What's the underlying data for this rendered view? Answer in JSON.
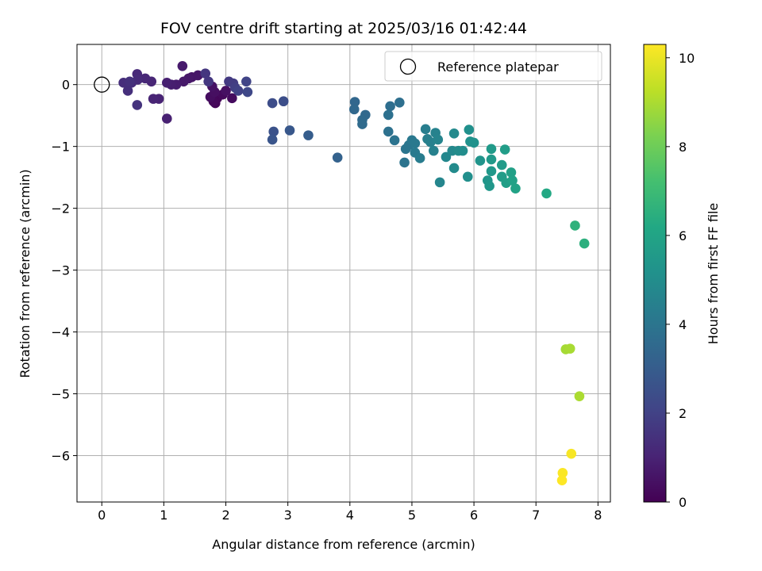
{
  "chart_data": {
    "type": "scatter",
    "title": "FOV centre drift starting at 2025/03/16 01:42:44",
    "xlabel": "Angular distance from reference (arcmin)",
    "ylabel": "Rotation from reference (arcmin)",
    "xlim": [
      -0.4,
      8.2
    ],
    "ylim": [
      -6.75,
      0.65
    ],
    "xticks": [
      0,
      1,
      2,
      3,
      4,
      5,
      6,
      7,
      8
    ],
    "yticks": [
      0,
      -1,
      -2,
      -3,
      -4,
      -5,
      -6
    ],
    "xtick_labels": [
      "0",
      "1",
      "2",
      "3",
      "4",
      "5",
      "6",
      "7",
      "8"
    ],
    "ytick_labels": [
      "0",
      "−1",
      "−2",
      "−3",
      "−4",
      "−5",
      "−6"
    ],
    "grid": true,
    "legend": {
      "position": "top-right",
      "entries": [
        "Reference platepar"
      ]
    },
    "reference_point": {
      "x": 0,
      "y": 0,
      "label": "Reference platepar"
    },
    "colorbar": {
      "label": "Hours from first FF file",
      "colormap": "viridis",
      "range": [
        0,
        10.3
      ],
      "ticks": [
        0,
        2,
        4,
        6,
        8,
        10
      ],
      "tick_labels": [
        "0",
        "2",
        "4",
        "6",
        "8",
        "10"
      ]
    },
    "points": [
      {
        "x": 1.83,
        "y": -0.3,
        "h": 0.1
      },
      {
        "x": 1.86,
        "y": -0.22,
        "h": 0.15
      },
      {
        "x": 1.8,
        "y": -0.27,
        "h": 0.2
      },
      {
        "x": 1.95,
        "y": -0.16,
        "h": 0.25
      },
      {
        "x": 2.1,
        "y": -0.22,
        "h": 0.3
      },
      {
        "x": 1.75,
        "y": -0.2,
        "h": 0.35
      },
      {
        "x": 1.82,
        "y": -0.12,
        "h": 0.4
      },
      {
        "x": 2.0,
        "y": -0.1,
        "h": 0.45
      },
      {
        "x": 1.78,
        "y": -0.03,
        "h": 0.5
      },
      {
        "x": 1.45,
        "y": 0.12,
        "h": 0.55
      },
      {
        "x": 1.55,
        "y": 0.15,
        "h": 0.6
      },
      {
        "x": 1.4,
        "y": 0.1,
        "h": 0.65
      },
      {
        "x": 1.32,
        "y": 0.05,
        "h": 0.7
      },
      {
        "x": 1.3,
        "y": 0.3,
        "h": 0.75
      },
      {
        "x": 1.2,
        "y": 0.0,
        "h": 0.8
      },
      {
        "x": 1.12,
        "y": 0.0,
        "h": 0.85
      },
      {
        "x": 1.05,
        "y": 0.03,
        "h": 0.9
      },
      {
        "x": 1.05,
        "y": -0.55,
        "h": 0.95
      },
      {
        "x": 0.92,
        "y": -0.23,
        "h": 1.0
      },
      {
        "x": 0.83,
        "y": -0.23,
        "h": 1.05
      },
      {
        "x": 0.8,
        "y": 0.05,
        "h": 1.1
      },
      {
        "x": 0.7,
        "y": 0.1,
        "h": 1.15
      },
      {
        "x": 0.57,
        "y": 0.17,
        "h": 1.2
      },
      {
        "x": 0.58,
        "y": 0.08,
        "h": 1.25
      },
      {
        "x": 0.48,
        "y": 0.03,
        "h": 1.3
      },
      {
        "x": 0.35,
        "y": 0.03,
        "h": 1.35
      },
      {
        "x": 0.42,
        "y": -0.1,
        "h": 1.4
      },
      {
        "x": 0.45,
        "y": 0.05,
        "h": 1.45
      },
      {
        "x": 0.57,
        "y": -0.33,
        "h": 1.5
      },
      {
        "x": 1.67,
        "y": 0.18,
        "h": 1.6
      },
      {
        "x": 1.72,
        "y": 0.05,
        "h": 1.65
      },
      {
        "x": 2.05,
        "y": 0.05,
        "h": 1.7
      },
      {
        "x": 2.12,
        "y": 0.02,
        "h": 1.8
      },
      {
        "x": 2.15,
        "y": -0.05,
        "h": 1.9
      },
      {
        "x": 2.2,
        "y": -0.1,
        "h": 2.0
      },
      {
        "x": 2.33,
        "y": 0.05,
        "h": 2.1
      },
      {
        "x": 2.35,
        "y": -0.12,
        "h": 2.2
      },
      {
        "x": 2.75,
        "y": -0.3,
        "h": 2.4
      },
      {
        "x": 2.93,
        "y": -0.27,
        "h": 2.45
      },
      {
        "x": 2.77,
        "y": -0.76,
        "h": 2.6
      },
      {
        "x": 2.75,
        "y": -0.89,
        "h": 2.7
      },
      {
        "x": 3.03,
        "y": -0.74,
        "h": 2.8
      },
      {
        "x": 3.33,
        "y": -0.82,
        "h": 3.0
      },
      {
        "x": 3.8,
        "y": -1.18,
        "h": 3.2
      },
      {
        "x": 4.08,
        "y": -0.28,
        "h": 3.4
      },
      {
        "x": 4.07,
        "y": -0.4,
        "h": 3.45
      },
      {
        "x": 4.25,
        "y": -0.49,
        "h": 3.5
      },
      {
        "x": 4.2,
        "y": -0.57,
        "h": 3.55
      },
      {
        "x": 4.2,
        "y": -0.64,
        "h": 3.6
      },
      {
        "x": 4.65,
        "y": -0.35,
        "h": 3.7
      },
      {
        "x": 4.8,
        "y": -0.29,
        "h": 3.75
      },
      {
        "x": 4.62,
        "y": -0.49,
        "h": 3.8
      },
      {
        "x": 4.62,
        "y": -0.76,
        "h": 3.85
      },
      {
        "x": 4.72,
        "y": -0.9,
        "h": 3.9
      },
      {
        "x": 4.88,
        "y": -1.26,
        "h": 3.95
      },
      {
        "x": 4.9,
        "y": -1.04,
        "h": 4.0
      },
      {
        "x": 4.95,
        "y": -0.98,
        "h": 4.05
      },
      {
        "x": 5.0,
        "y": -0.9,
        "h": 4.1
      },
      {
        "x": 5.05,
        "y": -0.95,
        "h": 4.15
      },
      {
        "x": 5.05,
        "y": -1.1,
        "h": 4.2
      },
      {
        "x": 5.13,
        "y": -1.19,
        "h": 4.3
      },
      {
        "x": 5.22,
        "y": -0.72,
        "h": 4.35
      },
      {
        "x": 5.25,
        "y": -0.88,
        "h": 4.4
      },
      {
        "x": 5.3,
        "y": -0.93,
        "h": 4.45
      },
      {
        "x": 5.35,
        "y": -1.07,
        "h": 4.5
      },
      {
        "x": 5.38,
        "y": -0.78,
        "h": 4.55
      },
      {
        "x": 5.42,
        "y": -0.89,
        "h": 4.6
      },
      {
        "x": 5.45,
        "y": -1.58,
        "h": 4.7
      },
      {
        "x": 5.55,
        "y": -1.17,
        "h": 4.75
      },
      {
        "x": 5.65,
        "y": -1.07,
        "h": 4.8
      },
      {
        "x": 5.68,
        "y": -0.79,
        "h": 4.85
      },
      {
        "x": 5.68,
        "y": -1.35,
        "h": 4.9
      },
      {
        "x": 5.75,
        "y": -1.07,
        "h": 4.95
      },
      {
        "x": 5.82,
        "y": -1.07,
        "h": 5.0
      },
      {
        "x": 5.9,
        "y": -1.49,
        "h": 5.05
      },
      {
        "x": 5.92,
        "y": -0.73,
        "h": 5.1
      },
      {
        "x": 5.94,
        "y": -0.92,
        "h": 5.15
      },
      {
        "x": 6.0,
        "y": -0.94,
        "h": 5.2
      },
      {
        "x": 6.1,
        "y": -1.23,
        "h": 5.3
      },
      {
        "x": 6.22,
        "y": -1.55,
        "h": 5.35
      },
      {
        "x": 6.25,
        "y": -1.64,
        "h": 5.4
      },
      {
        "x": 6.28,
        "y": -1.4,
        "h": 5.45
      },
      {
        "x": 6.28,
        "y": -1.21,
        "h": 5.5
      },
      {
        "x": 6.28,
        "y": -1.04,
        "h": 5.55
      },
      {
        "x": 6.45,
        "y": -1.3,
        "h": 5.6
      },
      {
        "x": 6.45,
        "y": -1.49,
        "h": 5.65
      },
      {
        "x": 6.5,
        "y": -1.05,
        "h": 5.7
      },
      {
        "x": 6.52,
        "y": -1.59,
        "h": 5.75
      },
      {
        "x": 6.6,
        "y": -1.42,
        "h": 5.8
      },
      {
        "x": 6.62,
        "y": -1.55,
        "h": 5.85
      },
      {
        "x": 6.67,
        "y": -1.68,
        "h": 5.9
      },
      {
        "x": 7.17,
        "y": -1.76,
        "h": 6.2
      },
      {
        "x": 7.63,
        "y": -2.28,
        "h": 6.6
      },
      {
        "x": 7.78,
        "y": -2.57,
        "h": 6.5
      },
      {
        "x": 7.48,
        "y": -4.28,
        "h": 8.9
      },
      {
        "x": 7.55,
        "y": -4.27,
        "h": 8.95
      },
      {
        "x": 7.7,
        "y": -5.04,
        "h": 9.0
      },
      {
        "x": 7.57,
        "y": -5.97,
        "h": 10.2
      },
      {
        "x": 7.43,
        "y": -6.28,
        "h": 10.25
      },
      {
        "x": 7.42,
        "y": -6.4,
        "h": 10.3
      }
    ]
  }
}
